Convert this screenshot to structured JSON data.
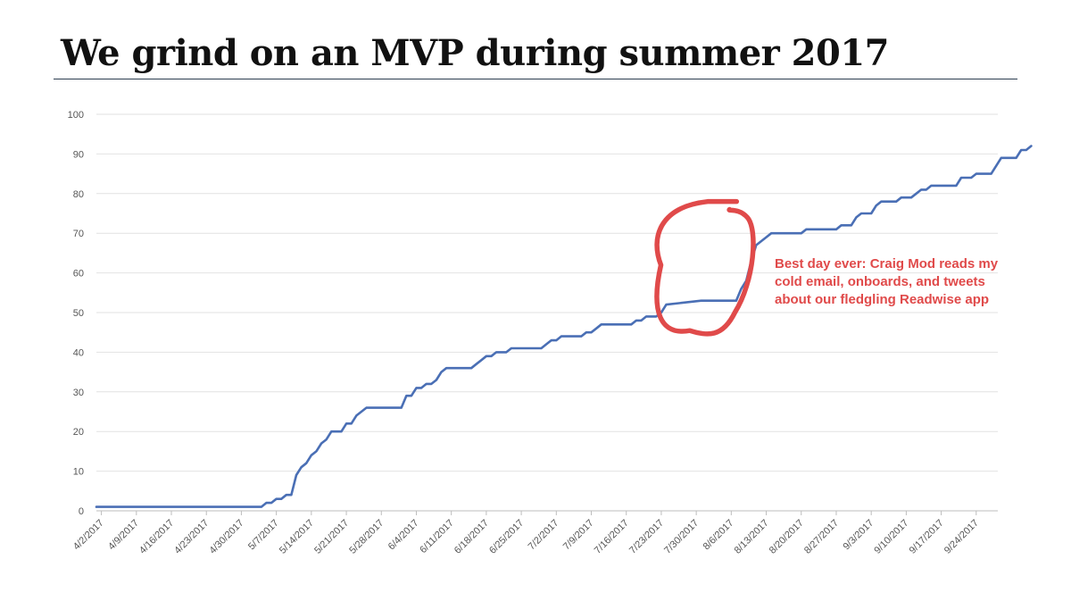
{
  "title": "We grind on an MVP during summer 2017",
  "colors": {
    "line": "#4a6fb5",
    "annotation": "#e04a4a",
    "grid": "#e2e2e2",
    "axis_text": "#555555"
  },
  "annotation": {
    "lines": [
      "Best day ever: Craig Mod reads my",
      "cold email, onboards, and tweets",
      "about our fledgling Readwise app"
    ]
  },
  "chart_data": {
    "type": "line",
    "title": "",
    "xlabel": "",
    "ylabel": "",
    "ylim": [
      0,
      100
    ],
    "yticks": [
      0,
      10,
      20,
      30,
      40,
      50,
      60,
      70,
      80,
      90,
      100
    ],
    "grid": true,
    "legend": "none",
    "xticks": [
      "4/2/2017",
      "4/9/2017",
      "4/16/2017",
      "4/23/2017",
      "4/30/2017",
      "5/7/2017",
      "5/14/2017",
      "5/21/2017",
      "5/28/2017",
      "6/4/2017",
      "6/11/2017",
      "6/18/2017",
      "6/25/2017",
      "7/2/2017",
      "7/9/2017",
      "7/16/2017",
      "7/23/2017",
      "7/30/2017",
      "8/6/2017",
      "8/13/2017",
      "8/20/2017",
      "8/27/2017",
      "9/3/2017",
      "9/10/2017",
      "9/17/2017",
      "9/24/2017"
    ],
    "x_range": [
      "4/1/2017",
      "9/26/2017"
    ],
    "highlight": {
      "x_start": "7/24/2017",
      "x_end": "8/6/2017"
    },
    "series": [
      {
        "points": [
          [
            "4/1/2017",
            1
          ],
          [
            "5/4/2017",
            1
          ],
          [
            "5/5/2017",
            2
          ],
          [
            "5/6/2017",
            2
          ],
          [
            "5/7/2017",
            3
          ],
          [
            "5/8/2017",
            3
          ],
          [
            "5/9/2017",
            4
          ],
          [
            "5/10/2017",
            4
          ],
          [
            "5/11/2017",
            9
          ],
          [
            "5/12/2017",
            11
          ],
          [
            "5/13/2017",
            12
          ],
          [
            "5/14/2017",
            14
          ],
          [
            "5/15/2017",
            15
          ],
          [
            "5/16/2017",
            17
          ],
          [
            "5/17/2017",
            18
          ],
          [
            "5/18/2017",
            20
          ],
          [
            "5/20/2017",
            20
          ],
          [
            "5/21/2017",
            22
          ],
          [
            "5/22/2017",
            22
          ],
          [
            "5/23/2017",
            24
          ],
          [
            "5/24/2017",
            25
          ],
          [
            "5/25/2017",
            26
          ],
          [
            "6/1/2017",
            26
          ],
          [
            "6/2/2017",
            29
          ],
          [
            "6/3/2017",
            29
          ],
          [
            "6/4/2017",
            31
          ],
          [
            "6/5/2017",
            31
          ],
          [
            "6/6/2017",
            32
          ],
          [
            "6/7/2017",
            32
          ],
          [
            "6/8/2017",
            33
          ],
          [
            "6/9/2017",
            35
          ],
          [
            "6/10/2017",
            36
          ],
          [
            "6/15/2017",
            36
          ],
          [
            "6/16/2017",
            37
          ],
          [
            "6/17/2017",
            38
          ],
          [
            "6/18/2017",
            39
          ],
          [
            "6/19/2017",
            39
          ],
          [
            "6/20/2017",
            40
          ],
          [
            "6/22/2017",
            40
          ],
          [
            "6/23/2017",
            41
          ],
          [
            "6/29/2017",
            41
          ],
          [
            "6/30/2017",
            42
          ],
          [
            "7/1/2017",
            43
          ],
          [
            "7/2/2017",
            43
          ],
          [
            "7/3/2017",
            44
          ],
          [
            "7/7/2017",
            44
          ],
          [
            "7/8/2017",
            45
          ],
          [
            "7/9/2017",
            45
          ],
          [
            "7/10/2017",
            46
          ],
          [
            "7/11/2017",
            47
          ],
          [
            "7/17/2017",
            47
          ],
          [
            "7/18/2017",
            48
          ],
          [
            "7/19/2017",
            48
          ],
          [
            "7/20/2017",
            49
          ],
          [
            "7/22/2017",
            49
          ],
          [
            "7/23/2017",
            50
          ],
          [
            "7/24/2017",
            52
          ],
          [
            "7/31/2017",
            53
          ],
          [
            "8/7/2017",
            53
          ],
          [
            "8/8/2017",
            56
          ],
          [
            "8/9/2017",
            58
          ],
          [
            "8/10/2017",
            63
          ],
          [
            "8/11/2017",
            67
          ],
          [
            "8/13/2017",
            69
          ],
          [
            "8/14/2017",
            70
          ],
          [
            "8/20/2017",
            70
          ],
          [
            "8/21/2017",
            71
          ],
          [
            "8/27/2017",
            71
          ],
          [
            "8/28/2017",
            72
          ],
          [
            "8/30/2017",
            72
          ],
          [
            "8/31/2017",
            74
          ],
          [
            "9/1/2017",
            75
          ],
          [
            "9/3/2017",
            75
          ],
          [
            "9/4/2017",
            77
          ],
          [
            "9/5/2017",
            78
          ],
          [
            "9/8/2017",
            78
          ],
          [
            "9/9/2017",
            79
          ],
          [
            "9/11/2017",
            79
          ],
          [
            "9/12/2017",
            80
          ],
          [
            "9/13/2017",
            81
          ],
          [
            "9/14/2017",
            81
          ],
          [
            "9/15/2017",
            82
          ],
          [
            "9/20/2017",
            82
          ],
          [
            "9/21/2017",
            84
          ],
          [
            "9/23/2017",
            84
          ],
          [
            "9/24/2017",
            85
          ],
          [
            "9/27/2017",
            85
          ],
          [
            "9/29/2017",
            89
          ],
          [
            "10/2/2017",
            89
          ],
          [
            "10/3/2017",
            91
          ],
          [
            "10/4/2017",
            91
          ],
          [
            "10/5/2017",
            92
          ]
        ]
      }
    ]
  }
}
